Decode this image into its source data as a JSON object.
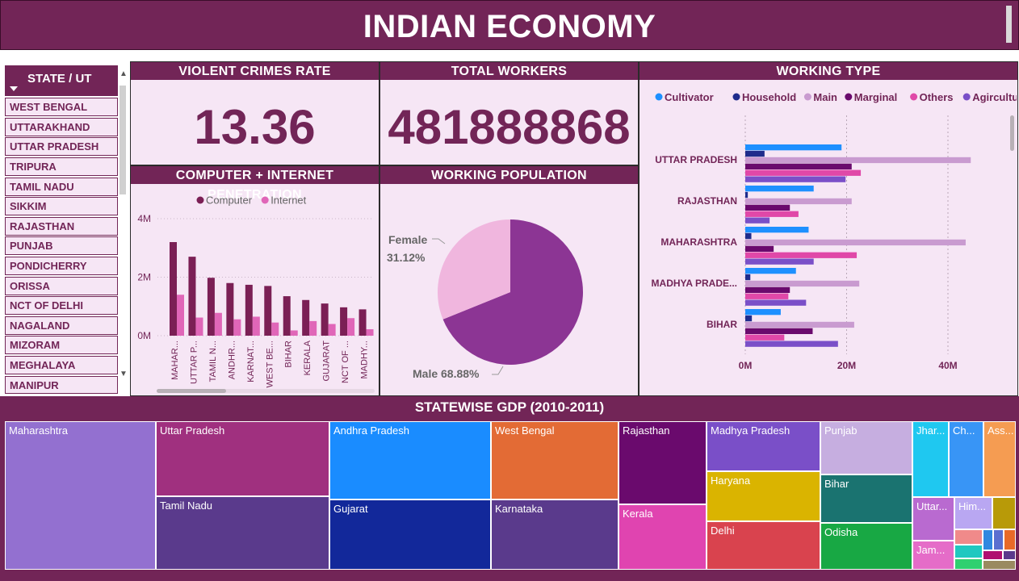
{
  "header": {
    "title": "INDIAN ECONOMY"
  },
  "slicer": {
    "title": "STATE / UT",
    "items": [
      "WEST BENGAL",
      "UTTARAKHAND",
      "UTTAR PRADESH",
      "TRIPURA",
      "TAMIL NADU",
      "SIKKIM",
      "RAJASTHAN",
      "PUNJAB",
      "PONDICHERRY",
      "ORISSA",
      "NCT OF DELHI",
      "NAGALAND",
      "MIZORAM",
      "MEGHALAYA",
      "MANIPUR"
    ]
  },
  "kpis": {
    "violent_crimes": {
      "title": "VIOLENT CRIMES RATE",
      "value": "13.36"
    },
    "total_workers": {
      "title": "TOTAL WORKERS",
      "value": "481888868"
    }
  },
  "colors": {
    "brand": "#722557",
    "panel_bg": "#f6e6f5",
    "computer": "#7b1f55",
    "internet": "#e066b8",
    "pie_male": "#8c3594",
    "pie_female": "#f0b6de"
  },
  "chart_data": [
    {
      "type": "bar",
      "title": "COMPUTER + INTERNET PENETRATION",
      "categories": [
        "MAHAR...",
        "UTTAR P...",
        "TAMIL N...",
        "ANDHR...",
        "KARNAT...",
        "WEST BE...",
        "BIHAR",
        "KERALA",
        "GUJARAT",
        "NCT OF ...",
        "MADHY..."
      ],
      "series": [
        {
          "name": "Computer",
          "color": "#7b1f55",
          "values": [
            3.2,
            2.7,
            1.98,
            1.8,
            1.74,
            1.7,
            1.35,
            1.22,
            1.1,
            0.97,
            0.9
          ]
        },
        {
          "name": "Internet",
          "color": "#e066b8",
          "values": [
            1.4,
            0.62,
            0.78,
            0.56,
            0.65,
            0.45,
            0.18,
            0.5,
            0.4,
            0.6,
            0.22
          ]
        }
      ],
      "yticks": [
        "0M",
        "2M",
        "4M"
      ],
      "ylim": [
        0,
        4
      ],
      "legend": "top"
    },
    {
      "type": "pie",
      "title": "WORKING POPULATION",
      "slices": [
        {
          "name": "Male",
          "label": "Male 68.88%",
          "value": 68.88,
          "color": "#8c3594"
        },
        {
          "name": "Female",
          "label_name": "Female",
          "label_pct": "31.12%",
          "value": 31.12,
          "color": "#f0b6de"
        }
      ]
    },
    {
      "type": "bar",
      "orientation": "horizontal",
      "title": "WORKING TYPE",
      "categories": [
        "UTTAR PRADESH",
        "RAJASTHAN",
        "MAHARASHTRA",
        "MADHYA PRADE...",
        "BIHAR"
      ],
      "series": [
        {
          "name": "Cultivator",
          "color": "#1e90ff",
          "values": [
            19,
            13.5,
            12.5,
            10,
            7
          ]
        },
        {
          "name": "Household",
          "color": "#1f2c8c",
          "values": [
            3.8,
            0.5,
            1.2,
            1,
            1.3
          ]
        },
        {
          "name": "Main",
          "color": "#c99bd0",
          "values": [
            44.5,
            21,
            43.5,
            22.5,
            21.5
          ]
        },
        {
          "name": "Marginal",
          "color": "#6a0a6d",
          "values": [
            21,
            8.8,
            5.6,
            8.8,
            13.3
          ]
        },
        {
          "name": "Others",
          "color": "#e048a8",
          "values": [
            22.8,
            10.5,
            22,
            8.5,
            7.7
          ]
        },
        {
          "name": "Agircultural",
          "color": "#7a4fc8",
          "values": [
            19.8,
            4.8,
            13.5,
            12,
            18.3
          ]
        }
      ],
      "xticks": [
        "0M",
        "20M",
        "40M"
      ],
      "xlim": [
        0,
        48
      ],
      "legend": "top"
    },
    {
      "type": "treemap",
      "title": "STATEWISE GDP (2010-2011)",
      "labels": [
        "Maharashtra",
        "Uttar Pradesh",
        "Tamil Nadu",
        "Andhra Pradesh",
        "Gujarat",
        "West Bengal",
        "Karnataka",
        "Rajasthan",
        "Kerala",
        "Madhya Pradesh",
        "Haryana",
        "Delhi",
        "Punjab",
        "Bihar",
        "Odisha",
        "Jhar...",
        "Ch...",
        "Ass...",
        "Uttar...",
        "Him...",
        "Jam..."
      ]
    }
  ]
}
